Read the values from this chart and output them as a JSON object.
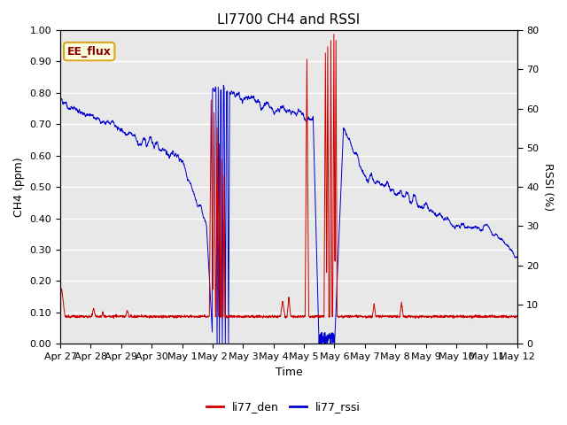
{
  "title": "LI7700 CH4 and RSSI",
  "xlabel": "Time",
  "ylabel_left": "CH4 (ppm)",
  "ylabel_right": "RSSI (%)",
  "ylim_left": [
    0.0,
    1.0
  ],
  "ylim_right": [
    0,
    80
  ],
  "yticks_left": [
    0.0,
    0.1,
    0.2,
    0.3,
    0.4,
    0.5,
    0.6,
    0.7,
    0.8,
    0.9,
    1.0
  ],
  "yticks_right": [
    0,
    10,
    20,
    30,
    40,
    50,
    60,
    70,
    80
  ],
  "background_color": "#e8e8e8",
  "legend_label_red": "li77_den",
  "legend_label_blue": "li77_rssi",
  "annotation": "EE_flux",
  "red_color": "#cc0000",
  "blue_color": "#0000cc",
  "title_fontsize": 11,
  "axis_fontsize": 9,
  "tick_fontsize": 8,
  "figwidth": 6.4,
  "figheight": 4.8,
  "dpi": 100
}
